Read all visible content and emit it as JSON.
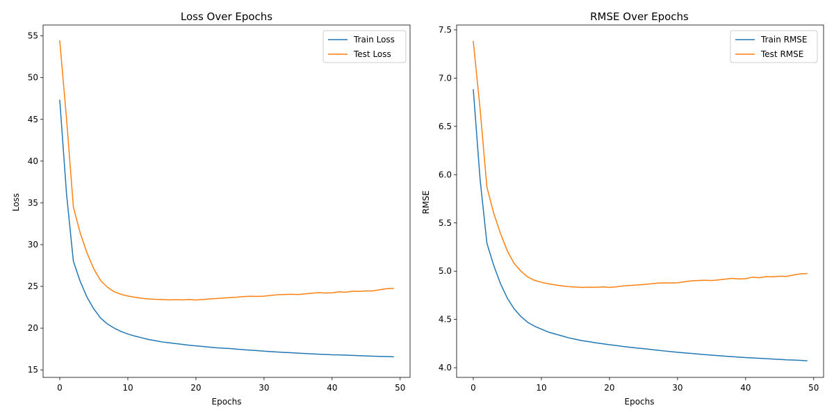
{
  "chart_data": [
    {
      "type": "line",
      "title": "Loss Over Epochs",
      "xlabel": "Epochs",
      "ylabel": "Loss",
      "xlim": [
        -2.45,
        51.45
      ],
      "ylim": [
        14.1,
        56.3
      ],
      "xticks": [
        0,
        10,
        20,
        30,
        40,
        50
      ],
      "yticks": [
        15,
        20,
        25,
        30,
        35,
        40,
        45,
        50,
        55
      ],
      "grid": false,
      "legend": "top-right",
      "x": [
        0,
        1,
        2,
        3,
        4,
        5,
        6,
        7,
        8,
        9,
        10,
        11,
        12,
        13,
        14,
        15,
        16,
        17,
        18,
        19,
        20,
        21,
        22,
        23,
        24,
        25,
        26,
        27,
        28,
        29,
        30,
        31,
        32,
        33,
        34,
        35,
        36,
        37,
        38,
        39,
        40,
        41,
        42,
        43,
        44,
        45,
        46,
        47,
        48,
        49
      ],
      "series": [
        {
          "name": "Train Loss",
          "color": "#1f77b4",
          "values": [
            47.3,
            36.0,
            28.0,
            25.6,
            23.7,
            22.3,
            21.2,
            20.5,
            20.0,
            19.6,
            19.3,
            19.05,
            18.85,
            18.65,
            18.5,
            18.35,
            18.25,
            18.15,
            18.05,
            17.95,
            17.88,
            17.8,
            17.72,
            17.65,
            17.6,
            17.55,
            17.48,
            17.42,
            17.36,
            17.3,
            17.24,
            17.19,
            17.14,
            17.09,
            17.05,
            17.0,
            16.96,
            16.92,
            16.88,
            16.85,
            16.81,
            16.79,
            16.76,
            16.73,
            16.7,
            16.67,
            16.64,
            16.62,
            16.6,
            16.57
          ]
        },
        {
          "name": "Test Loss",
          "color": "#ff7f0e",
          "values": [
            54.4,
            45.0,
            34.5,
            31.4,
            29.0,
            27.1,
            25.7,
            24.9,
            24.35,
            24.05,
            23.85,
            23.7,
            23.58,
            23.5,
            23.45,
            23.42,
            23.38,
            23.4,
            23.38,
            23.42,
            23.37,
            23.42,
            23.5,
            23.55,
            23.6,
            23.65,
            23.7,
            23.78,
            23.82,
            23.8,
            23.83,
            23.92,
            24.0,
            24.03,
            24.06,
            24.03,
            24.1,
            24.18,
            24.25,
            24.2,
            24.22,
            24.35,
            24.3,
            24.42,
            24.4,
            24.45,
            24.45,
            24.6,
            24.72,
            24.75
          ]
        }
      ]
    },
    {
      "type": "line",
      "title": "RMSE Over Epochs",
      "xlabel": "Epochs",
      "ylabel": "RMSE",
      "xlim": [
        -2.45,
        51.45
      ],
      "ylim": [
        3.9,
        7.55
      ],
      "xticks": [
        0,
        10,
        20,
        30,
        40,
        50
      ],
      "yticks": [
        4.0,
        4.5,
        5.0,
        5.5,
        6.0,
        6.5,
        7.0,
        7.5
      ],
      "grid": false,
      "legend": "top-right",
      "x": [
        0,
        1,
        2,
        3,
        4,
        5,
        6,
        7,
        8,
        9,
        10,
        11,
        12,
        13,
        14,
        15,
        16,
        17,
        18,
        19,
        20,
        21,
        22,
        23,
        24,
        25,
        26,
        27,
        28,
        29,
        30,
        31,
        32,
        33,
        34,
        35,
        36,
        37,
        38,
        39,
        40,
        41,
        42,
        43,
        44,
        45,
        46,
        47,
        48,
        49
      ],
      "series": [
        {
          "name": "Train RMSE",
          "color": "#1f77b4",
          "values": [
            6.88,
            5.95,
            5.29,
            5.06,
            4.87,
            4.72,
            4.61,
            4.53,
            4.47,
            4.43,
            4.4,
            4.37,
            4.35,
            4.33,
            4.31,
            4.295,
            4.28,
            4.27,
            4.258,
            4.248,
            4.238,
            4.23,
            4.22,
            4.212,
            4.204,
            4.198,
            4.19,
            4.182,
            4.174,
            4.167,
            4.16,
            4.154,
            4.148,
            4.142,
            4.136,
            4.13,
            4.125,
            4.12,
            4.115,
            4.11,
            4.105,
            4.102,
            4.098,
            4.094,
            4.09,
            4.086,
            4.082,
            4.08,
            4.076,
            4.072
          ]
        },
        {
          "name": "Test RMSE",
          "color": "#ff7f0e",
          "values": [
            7.38,
            6.68,
            5.87,
            5.6,
            5.39,
            5.21,
            5.08,
            5.0,
            4.94,
            4.905,
            4.885,
            4.87,
            4.858,
            4.848,
            4.84,
            4.836,
            4.832,
            4.834,
            4.833,
            4.838,
            4.832,
            4.838,
            4.848,
            4.852,
            4.857,
            4.862,
            4.868,
            4.876,
            4.879,
            4.878,
            4.88,
            4.89,
            4.9,
            4.903,
            4.906,
            4.903,
            4.91,
            4.918,
            4.926,
            4.92,
            4.922,
            4.938,
            4.932,
            4.944,
            4.942,
            4.948,
            4.946,
            4.96,
            4.972,
            4.976
          ]
        }
      ]
    }
  ]
}
